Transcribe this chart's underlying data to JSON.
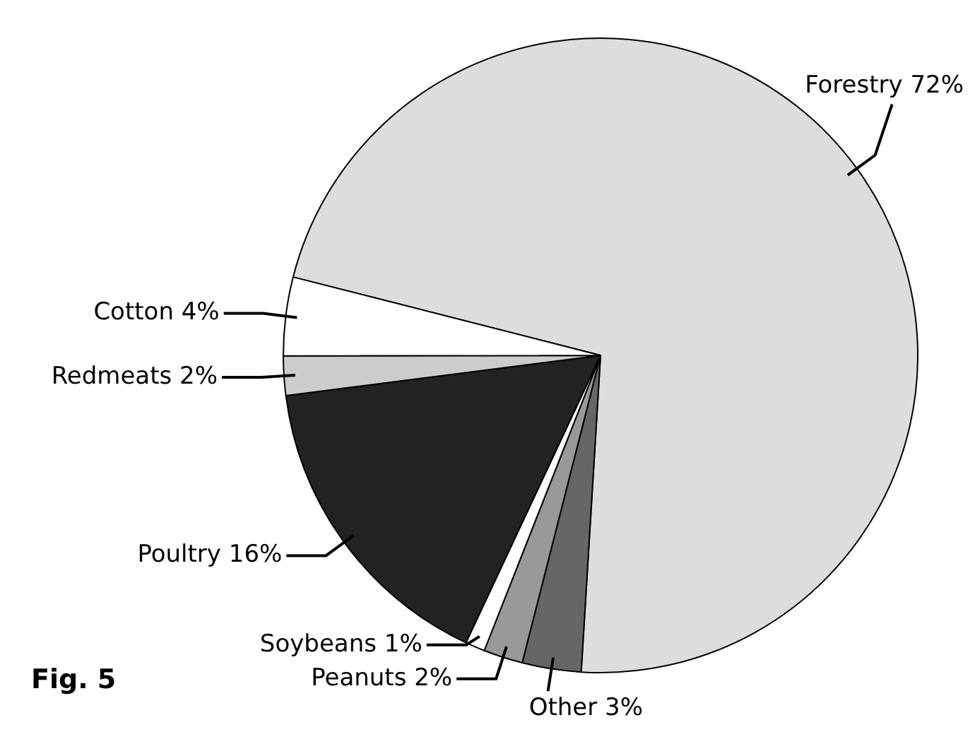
{
  "chart_data": {
    "type": "pie",
    "categories": [
      "Forestry 72%",
      "Other 3%",
      "Peanuts 2%",
      "Soybeans 1%",
      "Poultry 16%",
      "Redmeats 2%",
      "Cotton 4%"
    ],
    "values": [
      72,
      3,
      2,
      1,
      16,
      2,
      4
    ],
    "colors": [
      "#dddddd",
      "#666666",
      "#999999",
      "#ffffff",
      "#222222",
      "#cccccc",
      "#ffffff"
    ],
    "annotations": [
      "Fig. 5"
    ]
  }
}
